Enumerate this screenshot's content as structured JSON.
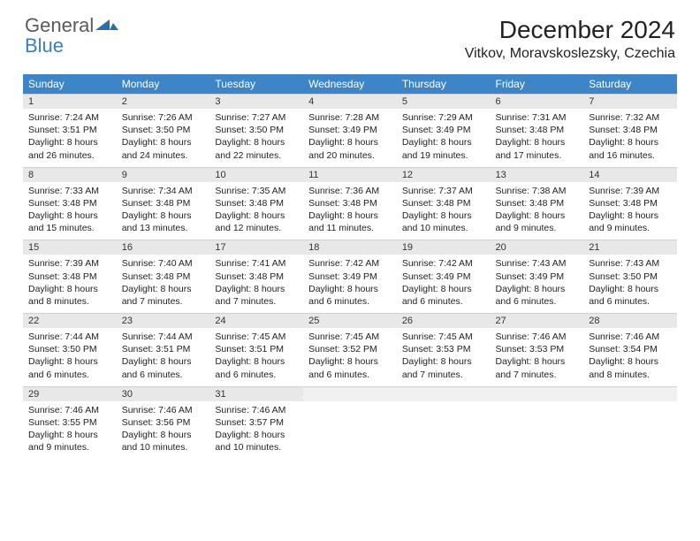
{
  "brand": {
    "text1": "General",
    "text2": "Blue",
    "text_color_gray": "#5a5a5a",
    "text_color_blue": "#3d7fb8",
    "shape_color": "#2a6fa8"
  },
  "title": "December 2024",
  "location": "Vitkov, Moravskoslezsky, Czechia",
  "colors": {
    "header_bg": "#3d85c6",
    "header_text": "#ffffff",
    "daynum_bg": "#e8e8e8",
    "cell_bg": "#ffffff",
    "text": "#222222"
  },
  "weekdays": [
    "Sunday",
    "Monday",
    "Tuesday",
    "Wednesday",
    "Thursday",
    "Friday",
    "Saturday"
  ],
  "weeks": [
    [
      {
        "day": "1",
        "sunrise": "Sunrise: 7:24 AM",
        "sunset": "Sunset: 3:51 PM",
        "daylight1": "Daylight: 8 hours",
        "daylight2": "and 26 minutes."
      },
      {
        "day": "2",
        "sunrise": "Sunrise: 7:26 AM",
        "sunset": "Sunset: 3:50 PM",
        "daylight1": "Daylight: 8 hours",
        "daylight2": "and 24 minutes."
      },
      {
        "day": "3",
        "sunrise": "Sunrise: 7:27 AM",
        "sunset": "Sunset: 3:50 PM",
        "daylight1": "Daylight: 8 hours",
        "daylight2": "and 22 minutes."
      },
      {
        "day": "4",
        "sunrise": "Sunrise: 7:28 AM",
        "sunset": "Sunset: 3:49 PM",
        "daylight1": "Daylight: 8 hours",
        "daylight2": "and 20 minutes."
      },
      {
        "day": "5",
        "sunrise": "Sunrise: 7:29 AM",
        "sunset": "Sunset: 3:49 PM",
        "daylight1": "Daylight: 8 hours",
        "daylight2": "and 19 minutes."
      },
      {
        "day": "6",
        "sunrise": "Sunrise: 7:31 AM",
        "sunset": "Sunset: 3:48 PM",
        "daylight1": "Daylight: 8 hours",
        "daylight2": "and 17 minutes."
      },
      {
        "day": "7",
        "sunrise": "Sunrise: 7:32 AM",
        "sunset": "Sunset: 3:48 PM",
        "daylight1": "Daylight: 8 hours",
        "daylight2": "and 16 minutes."
      }
    ],
    [
      {
        "day": "8",
        "sunrise": "Sunrise: 7:33 AM",
        "sunset": "Sunset: 3:48 PM",
        "daylight1": "Daylight: 8 hours",
        "daylight2": "and 15 minutes."
      },
      {
        "day": "9",
        "sunrise": "Sunrise: 7:34 AM",
        "sunset": "Sunset: 3:48 PM",
        "daylight1": "Daylight: 8 hours",
        "daylight2": "and 13 minutes."
      },
      {
        "day": "10",
        "sunrise": "Sunrise: 7:35 AM",
        "sunset": "Sunset: 3:48 PM",
        "daylight1": "Daylight: 8 hours",
        "daylight2": "and 12 minutes."
      },
      {
        "day": "11",
        "sunrise": "Sunrise: 7:36 AM",
        "sunset": "Sunset: 3:48 PM",
        "daylight1": "Daylight: 8 hours",
        "daylight2": "and 11 minutes."
      },
      {
        "day": "12",
        "sunrise": "Sunrise: 7:37 AM",
        "sunset": "Sunset: 3:48 PM",
        "daylight1": "Daylight: 8 hours",
        "daylight2": "and 10 minutes."
      },
      {
        "day": "13",
        "sunrise": "Sunrise: 7:38 AM",
        "sunset": "Sunset: 3:48 PM",
        "daylight1": "Daylight: 8 hours",
        "daylight2": "and 9 minutes."
      },
      {
        "day": "14",
        "sunrise": "Sunrise: 7:39 AM",
        "sunset": "Sunset: 3:48 PM",
        "daylight1": "Daylight: 8 hours",
        "daylight2": "and 9 minutes."
      }
    ],
    [
      {
        "day": "15",
        "sunrise": "Sunrise: 7:39 AM",
        "sunset": "Sunset: 3:48 PM",
        "daylight1": "Daylight: 8 hours",
        "daylight2": "and 8 minutes."
      },
      {
        "day": "16",
        "sunrise": "Sunrise: 7:40 AM",
        "sunset": "Sunset: 3:48 PM",
        "daylight1": "Daylight: 8 hours",
        "daylight2": "and 7 minutes."
      },
      {
        "day": "17",
        "sunrise": "Sunrise: 7:41 AM",
        "sunset": "Sunset: 3:48 PM",
        "daylight1": "Daylight: 8 hours",
        "daylight2": "and 7 minutes."
      },
      {
        "day": "18",
        "sunrise": "Sunrise: 7:42 AM",
        "sunset": "Sunset: 3:49 PM",
        "daylight1": "Daylight: 8 hours",
        "daylight2": "and 6 minutes."
      },
      {
        "day": "19",
        "sunrise": "Sunrise: 7:42 AM",
        "sunset": "Sunset: 3:49 PM",
        "daylight1": "Daylight: 8 hours",
        "daylight2": "and 6 minutes."
      },
      {
        "day": "20",
        "sunrise": "Sunrise: 7:43 AM",
        "sunset": "Sunset: 3:49 PM",
        "daylight1": "Daylight: 8 hours",
        "daylight2": "and 6 minutes."
      },
      {
        "day": "21",
        "sunrise": "Sunrise: 7:43 AM",
        "sunset": "Sunset: 3:50 PM",
        "daylight1": "Daylight: 8 hours",
        "daylight2": "and 6 minutes."
      }
    ],
    [
      {
        "day": "22",
        "sunrise": "Sunrise: 7:44 AM",
        "sunset": "Sunset: 3:50 PM",
        "daylight1": "Daylight: 8 hours",
        "daylight2": "and 6 minutes."
      },
      {
        "day": "23",
        "sunrise": "Sunrise: 7:44 AM",
        "sunset": "Sunset: 3:51 PM",
        "daylight1": "Daylight: 8 hours",
        "daylight2": "and 6 minutes."
      },
      {
        "day": "24",
        "sunrise": "Sunrise: 7:45 AM",
        "sunset": "Sunset: 3:51 PM",
        "daylight1": "Daylight: 8 hours",
        "daylight2": "and 6 minutes."
      },
      {
        "day": "25",
        "sunrise": "Sunrise: 7:45 AM",
        "sunset": "Sunset: 3:52 PM",
        "daylight1": "Daylight: 8 hours",
        "daylight2": "and 6 minutes."
      },
      {
        "day": "26",
        "sunrise": "Sunrise: 7:45 AM",
        "sunset": "Sunset: 3:53 PM",
        "daylight1": "Daylight: 8 hours",
        "daylight2": "and 7 minutes."
      },
      {
        "day": "27",
        "sunrise": "Sunrise: 7:46 AM",
        "sunset": "Sunset: 3:53 PM",
        "daylight1": "Daylight: 8 hours",
        "daylight2": "and 7 minutes."
      },
      {
        "day": "28",
        "sunrise": "Sunrise: 7:46 AM",
        "sunset": "Sunset: 3:54 PM",
        "daylight1": "Daylight: 8 hours",
        "daylight2": "and 8 minutes."
      }
    ],
    [
      {
        "day": "29",
        "sunrise": "Sunrise: 7:46 AM",
        "sunset": "Sunset: 3:55 PM",
        "daylight1": "Daylight: 8 hours",
        "daylight2": "and 9 minutes."
      },
      {
        "day": "30",
        "sunrise": "Sunrise: 7:46 AM",
        "sunset": "Sunset: 3:56 PM",
        "daylight1": "Daylight: 8 hours",
        "daylight2": "and 10 minutes."
      },
      {
        "day": "31",
        "sunrise": "Sunrise: 7:46 AM",
        "sunset": "Sunset: 3:57 PM",
        "daylight1": "Daylight: 8 hours",
        "daylight2": "and 10 minutes."
      },
      {
        "empty": true
      },
      {
        "empty": true
      },
      {
        "empty": true
      },
      {
        "empty": true
      }
    ]
  ]
}
